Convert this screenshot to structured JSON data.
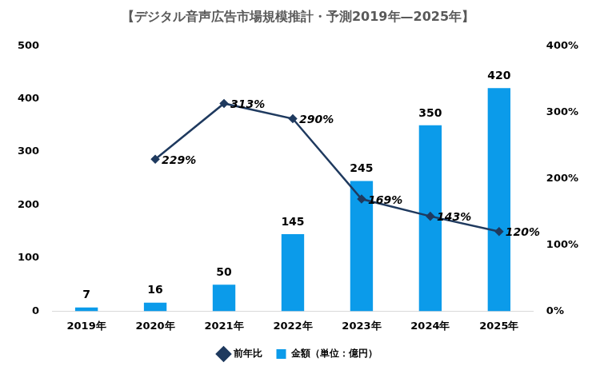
{
  "chart_data": {
    "type": "bar",
    "title": "【デジタル音声広告市場規模推計・予測2019年—2025年】",
    "categories": [
      "2019年",
      "2020年",
      "2021年",
      "2022年",
      "2023年",
      "2024年",
      "2025年"
    ],
    "series": [
      {
        "name": "金額（単位：億円）",
        "type": "bar",
        "color": "#0b9bea",
        "values": [
          7,
          16,
          50,
          145,
          245,
          350,
          420
        ]
      },
      {
        "name": "前年比",
        "type": "line",
        "axis": "y2",
        "color": "#1f3a5f",
        "marker": "diamond",
        "values": [
          null,
          229,
          313,
          290,
          169,
          143,
          120
        ],
        "value_labels": [
          null,
          "229%",
          "313%",
          "290%",
          "169%",
          "143%",
          "120%"
        ]
      }
    ],
    "ylim": [
      0,
      500
    ],
    "yticks": [
      0,
      100,
      200,
      300,
      400,
      500
    ],
    "y2lim": [
      0,
      400
    ],
    "y2ticks": [
      {
        "value": 0,
        "label": "0%"
      },
      {
        "value": 100,
        "label": "100%"
      },
      {
        "value": 200,
        "label": "200%"
      },
      {
        "value": 300,
        "label": "300%"
      },
      {
        "value": 400,
        "label": "400%"
      }
    ],
    "grid": false,
    "legend": "bottom",
    "data_labels": true
  }
}
